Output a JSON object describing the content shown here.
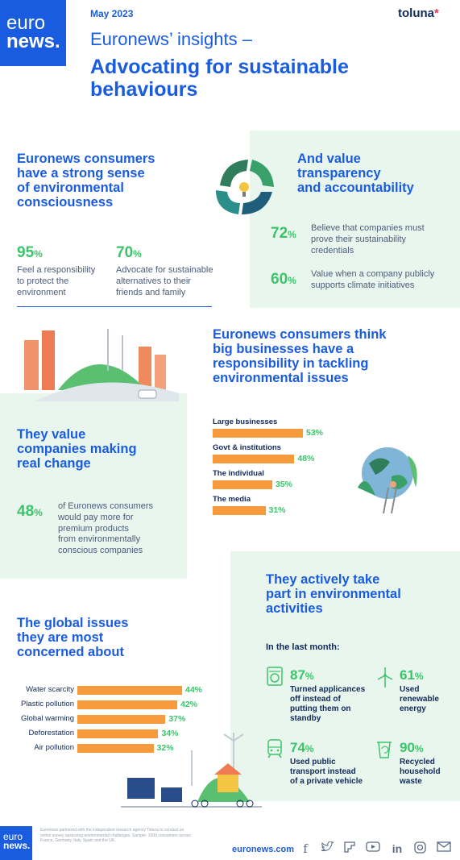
{
  "header": {
    "logo_top": "euro",
    "logo_bottom": "news.",
    "date": "May 2023",
    "partner": "toluna",
    "subtitle": "Euronews’ insights –",
    "title_line1": "Advocating for sustainable",
    "title_line2": "behaviours"
  },
  "consciousness": {
    "heading": [
      "Euronews consumers",
      "have a strong sense",
      "of environmental",
      "consciousness"
    ],
    "stats": [
      {
        "value": "95",
        "unit": "%",
        "text": [
          "Feel a responsibility",
          "to protect the",
          "environment"
        ]
      },
      {
        "value": "70",
        "unit": "%",
        "text": [
          "Advocate for sustainable",
          "alternatives to their",
          "friends and family"
        ]
      }
    ]
  },
  "transparency": {
    "heading": [
      "And value",
      "transparency",
      "and accountability"
    ],
    "stats": [
      {
        "value": "72",
        "unit": "%",
        "text": [
          "Believe that companies must",
          "prove their sustainability",
          "credentials"
        ]
      },
      {
        "value": "60",
        "unit": "%",
        "text": [
          "Value when a company publicly",
          "supports climate initiatives"
        ]
      }
    ]
  },
  "businesses": {
    "heading": [
      "Euronews consumers think",
      "big businesses have a",
      "responsibility in tackling",
      "environmental issues"
    ]
  },
  "chart_business": {
    "type": "bar",
    "categories": [
      "Large businesses",
      "Govt & institutions",
      "The individual",
      "The media"
    ],
    "values": [
      53,
      48,
      35,
      31
    ],
    "labels": [
      "53%",
      "48%",
      "35%",
      "31%"
    ]
  },
  "real_change": {
    "heading": [
      "They value",
      "companies making",
      "real change"
    ],
    "value": "48",
    "unit": "%",
    "text": [
      "of Euronews consumers",
      "would pay more for",
      "premium products",
      "from environmentally",
      "conscious companies"
    ]
  },
  "activities": {
    "heading": [
      "They actively take",
      "part in environmental",
      "activities"
    ],
    "period": "In the last month:",
    "items": [
      {
        "icon": "washing-machine-icon",
        "value": "87",
        "unit": "%",
        "text": [
          "Turned applicances",
          "off instead of",
          "putting them on",
          "standby"
        ]
      },
      {
        "icon": "wind-turbine-icon",
        "value": "61",
        "unit": "%",
        "text": [
          "Used",
          "renewable",
          "energy"
        ]
      },
      {
        "icon": "train-icon",
        "value": "74",
        "unit": "%",
        "text": [
          "Used public",
          "transport instead",
          "of a private vehicle"
        ]
      },
      {
        "icon": "recycle-bin-icon",
        "value": "90",
        "unit": "%",
        "text": [
          "Recycled",
          "household",
          "waste"
        ]
      }
    ]
  },
  "global": {
    "heading": [
      "The global issues",
      "they are most",
      "concerned about"
    ]
  },
  "chart_global": {
    "type": "bar",
    "categories": [
      "Water scarcity",
      "Plastic pollution",
      "Global warming",
      "Deforestation",
      "Air pollution"
    ],
    "values": [
      44,
      42,
      37,
      34,
      32
    ],
    "labels": [
      "44%",
      "42%",
      "37%",
      "34%",
      "32%"
    ]
  },
  "footer": {
    "logo_top": "euro",
    "logo_bottom": "news.",
    "disclaimer": [
      "Euronews partnered with the independent research agency Toluna to conduct an",
      "online survey assessing environmental challenges. Sample: 1000 consumers across",
      "France, Germany, Italy, Spain and the UK."
    ],
    "site": "euronews.com",
    "social": [
      "facebook-icon",
      "twitter-icon",
      "flipboard-icon",
      "youtube-icon",
      "linkedin-icon",
      "instagram-icon",
      "email-icon"
    ]
  },
  "colors": {
    "brand_blue": "#1a5ce0",
    "accent_green": "#3cc46a",
    "bar_orange": "#f79a3c",
    "mint_bg": "#e9f6ee"
  }
}
